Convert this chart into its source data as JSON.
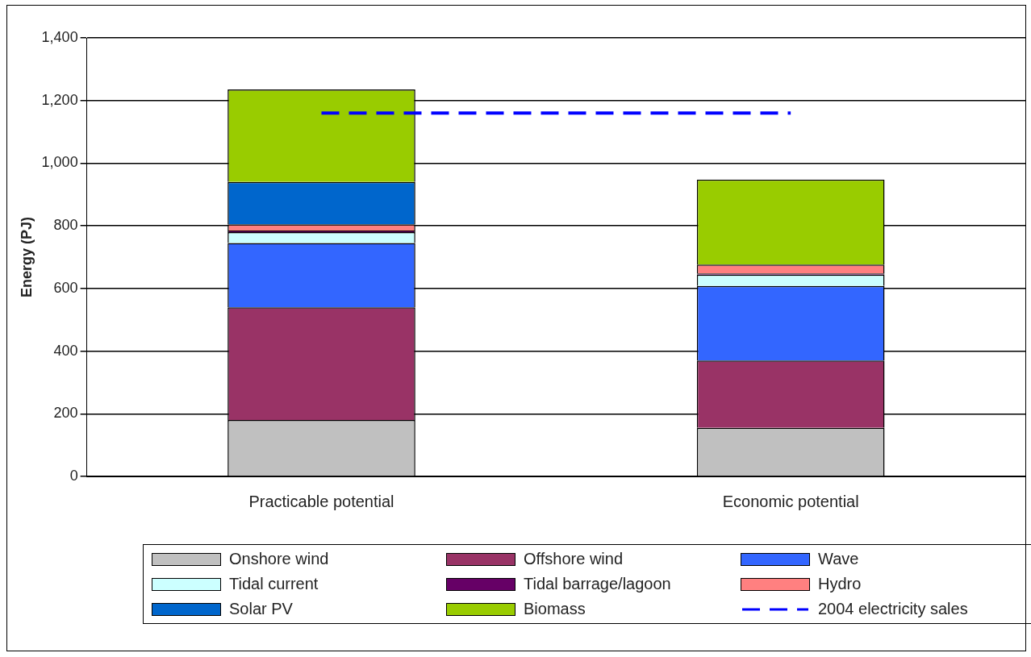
{
  "chart_data": {
    "type": "bar",
    "stacked": true,
    "ylabel": "Energy (PJ)",
    "categories": [
      "Practicable potential",
      "Economic potential"
    ],
    "series": [
      {
        "name": "Onshore wind",
        "color": "#c0c0c0",
        "values": [
          180,
          155
        ]
      },
      {
        "name": "Offshore wind",
        "color": "#993366",
        "values": [
          360,
          215
        ]
      },
      {
        "name": "Wave",
        "color": "#3366ff",
        "values": [
          205,
          238
        ]
      },
      {
        "name": "Tidal current",
        "color": "#ccffff",
        "values": [
          35,
          36
        ]
      },
      {
        "name": "Tidal barrage/lagoon",
        "color": "#660066",
        "values": [
          5,
          4
        ]
      },
      {
        "name": "Hydro",
        "color": "#ff8080",
        "values": [
          20,
          28
        ]
      },
      {
        "name": "Solar PV",
        "color": "#0066cc",
        "values": [
          135,
          0
        ]
      },
      {
        "name": "Biomass",
        "color": "#99cc00",
        "values": [
          295,
          272
        ]
      }
    ],
    "ref_lines": [
      {
        "axis": "y",
        "value": 1160,
        "label": "2004 electricity sales",
        "color": "#0000ff",
        "line_style": "dashed"
      }
    ],
    "ylim": [
      0,
      1400
    ],
    "yticks": [
      {
        "value": 0,
        "label": "0"
      },
      {
        "value": 200,
        "label": "200"
      },
      {
        "value": 400,
        "label": "400"
      },
      {
        "value": 600,
        "label": "600"
      },
      {
        "value": 800,
        "label": "800"
      },
      {
        "value": 1000,
        "label": "1,000"
      },
      {
        "value": 1200,
        "label": "1,200"
      },
      {
        "value": 1400,
        "label": "1,400"
      }
    ],
    "grid": "y",
    "legend": "bottom"
  }
}
